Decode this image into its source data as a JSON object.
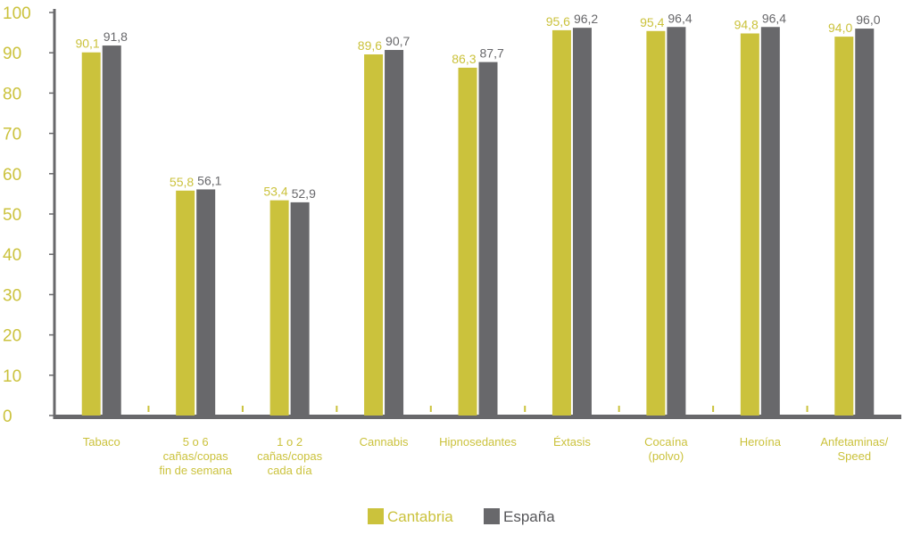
{
  "chart_data": {
    "type": "bar",
    "title": "",
    "xlabel": "",
    "ylabel": "",
    "ylim": [
      0,
      100
    ],
    "yticks": [
      0,
      10,
      20,
      30,
      40,
      50,
      60,
      70,
      80,
      90,
      100
    ],
    "grid": false,
    "legend_position": "bottom",
    "categories": [
      [
        "Tabaco"
      ],
      [
        "5 o 6",
        "cañas/copas",
        "fin de semana"
      ],
      [
        "1 o 2",
        "cañas/copas",
        "cada día"
      ],
      [
        "Cannabis"
      ],
      [
        "Hipnosedantes"
      ],
      [
        "Éxtasis"
      ],
      [
        "Cocaína",
        "(polvo)"
      ],
      [
        "Heroína"
      ],
      [
        "Anfetaminas/",
        "Speed"
      ]
    ],
    "series": [
      {
        "name": "Cantabria",
        "color": "#cbc23c",
        "values": [
          90.1,
          55.8,
          53.4,
          89.6,
          86.3,
          95.6,
          95.4,
          94.8,
          94.0
        ],
        "labels": [
          "90,1",
          "55,8",
          "53,4",
          "89,6",
          "86,3",
          "95,6",
          "95,4",
          "94,8",
          "94,0"
        ]
      },
      {
        "name": "España",
        "color": "#68686b",
        "values": [
          91.8,
          56.1,
          52.9,
          90.7,
          87.7,
          96.2,
          96.4,
          96.4,
          96.0
        ],
        "labels": [
          "91,8",
          "56,1",
          "52,9",
          "90,7",
          "87,7",
          "96,2",
          "96,4",
          "96,4",
          "96,0"
        ]
      }
    ]
  }
}
